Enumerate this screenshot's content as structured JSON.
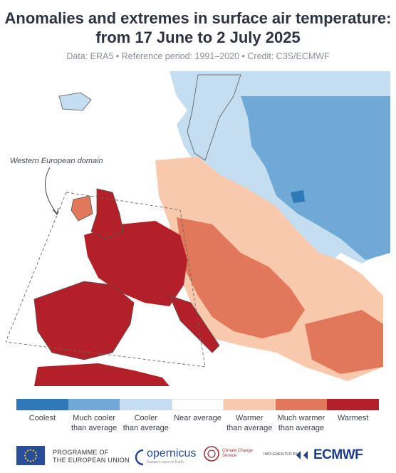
{
  "title_line1": "Anomalies and extremes in surface air temperature:",
  "title_line2": "from 17 June to 2 July 2025",
  "subtitle": "Data: ERA5 • Reference period: 1991–2020 • Credit: C3S/ECMWF",
  "annotation": "Western European domain",
  "colors": {
    "coolest": "#2f78b8",
    "much_cooler": "#6fa9d6",
    "cooler": "#c4ddf0",
    "near_average": "#ffffff",
    "warmer": "#f9c9ae",
    "much_warmer": "#e2785a",
    "warmest": "#b3202a",
    "land_outline": "#555555",
    "sea": "#ffffff"
  },
  "legend": [
    {
      "label": "Coolest",
      "color": "#2f78b8"
    },
    {
      "label": "Much cooler\nthan average",
      "color": "#6fa9d6"
    },
    {
      "label": "Cooler\nthan average",
      "color": "#c4ddf0"
    },
    {
      "label": "Near average",
      "color": "#ffffff"
    },
    {
      "label": "Warmer\nthan average",
      "color": "#f9c9ae"
    },
    {
      "label": "Much warmer\nthan average",
      "color": "#e2785a"
    },
    {
      "label": "Warmest",
      "color": "#b3202a"
    }
  ],
  "footer": {
    "eu_text": "PROGRAMME OF\nTHE EUROPEAN UNION",
    "copernicus": "opernicus",
    "copernicus_sub": "Europe's eyes on Earth",
    "c3s": "Climate Change Service",
    "implemented_by": "IMPLEMENTED BY",
    "ecmwf": "ECMWF"
  }
}
